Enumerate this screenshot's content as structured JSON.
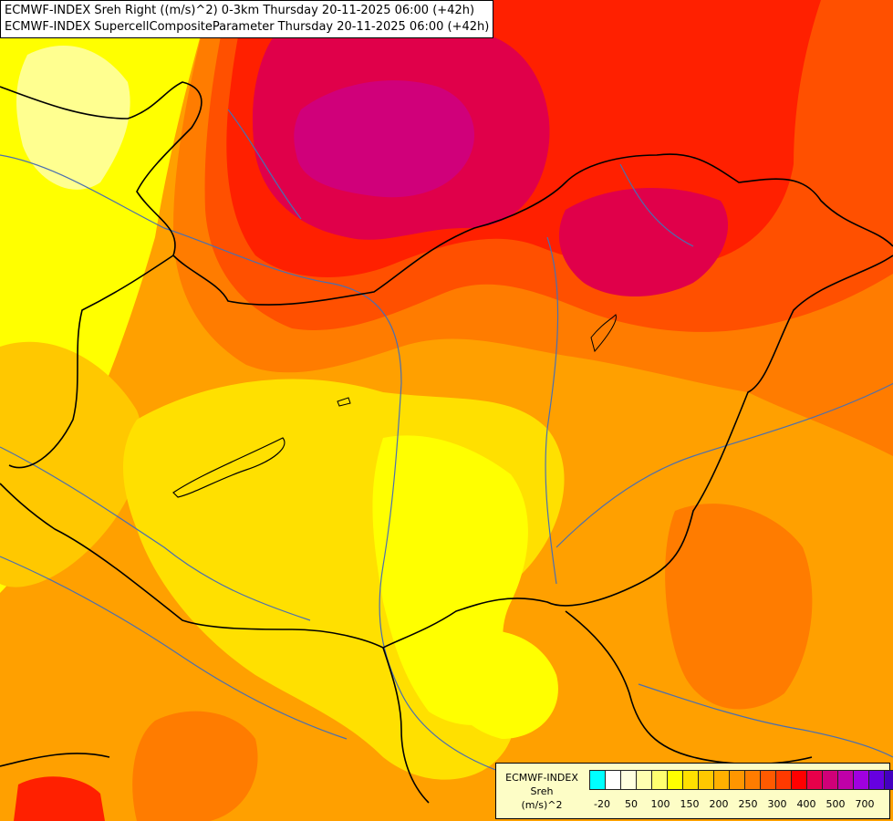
{
  "header": {
    "line1": "ECMWF-INDEX Sreh Right ((m/s)^2) 0-3km Thursday 20-11-2025 06:00 (+42h)",
    "line2": "ECMWF-INDEX SupercellCompositeParameter Thursday 20-11-2025 06:00 (+42h)"
  },
  "legend": {
    "title": "ECMWF-INDEX",
    "variable": "Sreh",
    "unit": "(m/s)^2",
    "ticks": [
      "-20",
      "50",
      "100",
      "150",
      "200",
      "250",
      "300",
      "400",
      "500",
      "700"
    ],
    "colors": [
      "#00ffff",
      "#ffffff",
      "#ffffe0",
      "#ffffb0",
      "#ffff70",
      "#ffff00",
      "#ffe000",
      "#ffc800",
      "#ffb000",
      "#ff9600",
      "#ff7c00",
      "#ff5a00",
      "#ff3a00",
      "#ff0000",
      "#e8004a",
      "#d00078",
      "#c000a8",
      "#a000e0",
      "#6600e0",
      "#4400c0",
      "#20009a",
      "#0a0080"
    ]
  },
  "map": {
    "colors": {
      "yellow_pale": "#ffff90",
      "yellow": "#ffff00",
      "yellow_orange": "#ffe000",
      "light_orange": "#ffc800",
      "orange": "#ffa000",
      "dark_orange": "#ff7c00",
      "red_orange": "#ff5000",
      "red": "#ff2000",
      "crimson": "#e0004a",
      "magenta": "#d0007a",
      "border": "#000000",
      "river": "#4a6fb0"
    }
  }
}
